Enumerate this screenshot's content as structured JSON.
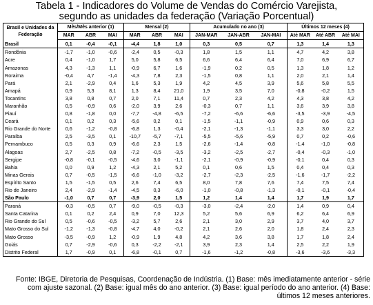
{
  "header": {
    "title_line1": "Tabela 1 - Indicadores do Volume de Vendas do Comércio Varejista,",
    "title_line2": "segundo as unidades da federação (Variação Porcentual)"
  },
  "table": {
    "row_header": "Brasil e Unidades da Federação",
    "groups": [
      "Mês/Mês anterior (1)",
      "Mensal (2)",
      "Acumulado no ano (3)",
      "Últimos 12 meses (4)"
    ],
    "subheaders": [
      [
        "MAR",
        "ABR",
        "MAI"
      ],
      [
        "MAR",
        "ABR",
        "MAI"
      ],
      [
        "JAN-MAR",
        "JAN-ABR",
        "JAN-MAI"
      ],
      [
        "Até MAR",
        "Até ABR",
        "Até MAI"
      ]
    ],
    "rows": [
      {
        "name": "Brasil",
        "bold": true,
        "values": [
          "0,1",
          "-0,4",
          "-0,1",
          "-4,4",
          "1,8",
          "1,0",
          "0,3",
          "0,5",
          "0,7",
          "1,3",
          "1,4",
          "1,3"
        ]
      },
      {
        "name": "Rondônia",
        "values": [
          "-1,7",
          "-1,0",
          "-0,6",
          "-2,4",
          "0,5",
          "-0,3",
          "1,8",
          "1,5",
          "1,1",
          "4,7",
          "4,2",
          "3,8"
        ]
      },
      {
        "name": "Acre",
        "values": [
          "0,4",
          "-1,0",
          "1,7",
          "5,0",
          "5,8",
          "6,5",
          "6,6",
          "6,4",
          "6,4",
          "7,0",
          "6,9",
          "6,7"
        ]
      },
      {
        "name": "Amazonas",
        "values": [
          "4,3",
          "-1,3",
          "1,1",
          "-0,9",
          "6,7",
          "1,6",
          "-1,9",
          "0,2",
          "0,5",
          "1,3",
          "1,8",
          "1,2"
        ]
      },
      {
        "name": "Roraima",
        "values": [
          "-0,4",
          "4,7",
          "-1,4",
          "-4,3",
          "7,8",
          "2,3",
          "-1,5",
          "0,8",
          "1,1",
          "2,0",
          "2,1",
          "1,4"
        ]
      },
      {
        "name": "Pará",
        "values": [
          "2,1",
          "-2,9",
          "0,4",
          "1,6",
          "5,3",
          "1,9",
          "4,2",
          "4,5",
          "3,9",
          "5,6",
          "5,8",
          "5,5"
        ]
      },
      {
        "name": "Amapá",
        "values": [
          "0,9",
          "5,3",
          "8,1",
          "1,3",
          "8,4",
          "21,0",
          "1,9",
          "3,5",
          "7,0",
          "-0,8",
          "-0,2",
          "1,5"
        ]
      },
      {
        "name": "Tocantins",
        "values": [
          "3,8",
          "0,8",
          "0,7",
          "2,0",
          "7,1",
          "11,4",
          "0,7",
          "2,3",
          "4,2",
          "4,3",
          "3,8",
          "4,2"
        ]
      },
      {
        "name": "Maranhão",
        "values": [
          "0,5",
          "-0,9",
          "0,6",
          "-2,0",
          "3,9",
          "2,6",
          "-0,3",
          "0,7",
          "1,1",
          "3,6",
          "3,9",
          "3,8"
        ]
      },
      {
        "name": "Piauí",
        "values": [
          "0,8",
          "-1,8",
          "0,0",
          "-7,7",
          "-4,8",
          "-6,5",
          "-7,2",
          "-6,6",
          "-6,6",
          "-3,5",
          "-3,9",
          "-4,5"
        ]
      },
      {
        "name": "Ceará",
        "values": [
          "0,1",
          "0,2",
          "0,3",
          "-5,6",
          "0,2",
          "0,1",
          "-1,5",
          "-1,1",
          "-0,9",
          "0,9",
          "0,6",
          "0,3"
        ]
      },
      {
        "name": "Rio Grande do Norte",
        "values": [
          "0,6",
          "-1,2",
          "-0,8",
          "-6,8",
          "1,3",
          "-0,4",
          "-2,1",
          "-1,3",
          "-1,1",
          "3,3",
          "3,0",
          "2,2"
        ]
      },
      {
        "name": "Paraíba",
        "values": [
          "2,5",
          "-3,5",
          "0,1",
          "-10,7",
          "-5,7",
          "-7,1",
          "-5,5",
          "-5,6",
          "-5,9",
          "0,7",
          "0,2",
          "-0,6"
        ]
      },
      {
        "name": "Pernambuco",
        "values": [
          "0,5",
          "0,3",
          "0,9",
          "-6,6",
          "2,3",
          "1,5",
          "-2,6",
          "-1,4",
          "-0,8",
          "-1,4",
          "-1,0",
          "-0,8"
        ]
      },
      {
        "name": "Alagoas",
        "values": [
          "2,7",
          "-2,5",
          "0,8",
          "-7,2",
          "-0,5",
          "-3,5",
          "-3,2",
          "-2,5",
          "-2,7",
          "-0,4",
          "-0,3",
          "-1,0"
        ]
      },
      {
        "name": "Sergipe",
        "values": [
          "-0,8",
          "-0,1",
          "-0,5",
          "-4,6",
          "3,0",
          "-1,1",
          "-2,1",
          "-0,9",
          "-0,9",
          "-0,1",
          "0,4",
          "0,3"
        ]
      },
      {
        "name": "Bahia",
        "values": [
          "0,0",
          "0,9",
          "1,2",
          "-4,3",
          "2,1",
          "5,2",
          "0,1",
          "0,6",
          "1,5",
          "0,4",
          "0,4",
          "0,3"
        ]
      },
      {
        "name": "Minas Gerais",
        "values": [
          "0,7",
          "-0,5",
          "-1,5",
          "-6,6",
          "-1,0",
          "-3,2",
          "-2,7",
          "-2,3",
          "-2,5",
          "-1,6",
          "-1,7",
          "-2,2"
        ]
      },
      {
        "name": "Espírito Santo",
        "values": [
          "1,5",
          "-1,5",
          "0,5",
          "2,6",
          "7,4",
          "6,5",
          "8,0",
          "7,8",
          "7,6",
          "7,4",
          "7,5",
          "7,4"
        ]
      },
      {
        "name": "Rio de Janeiro",
        "values": [
          "2,4",
          "-2,9",
          "-1,4",
          "-4,5",
          "0,3",
          "-6,0",
          "-1,0",
          "-0,8",
          "-1,3",
          "-0,1",
          "-0,1",
          "-0,4"
        ]
      },
      {
        "name": "São Paulo",
        "bold": true,
        "values": [
          "-1,0",
          "0,7",
          "0,7",
          "-3,9",
          "2,0",
          "1,5",
          "1,2",
          "1,4",
          "1,4",
          "1,7",
          "1,9",
          "1,7"
        ]
      },
      {
        "name": "Paraná",
        "values": [
          "-0,3",
          "-0,5",
          "0,7",
          "-9,0",
          "-0,5",
          "-0,3",
          "-3,0",
          "-2,4",
          "-2,0",
          "1,4",
          "0,9",
          "0,4"
        ]
      },
      {
        "name": "Santa Catarina",
        "values": [
          "0,1",
          "0,2",
          "2,4",
          "0,9",
          "7,0",
          "12,3",
          "5,2",
          "5,6",
          "6,9",
          "6,2",
          "6,4",
          "6,9"
        ]
      },
      {
        "name": "Rio Grande do Sul",
        "values": [
          "0,5",
          "-0,6",
          "-0,5",
          "-3,2",
          "5,7",
          "2,6",
          "2,1",
          "3,0",
          "2,9",
          "3,7",
          "4,0",
          "3,7"
        ]
      },
      {
        "name": "Mato Grosso do Sul",
        "values": [
          "-1,2",
          "-1,3",
          "-0,8",
          "-4,7",
          "4,0",
          "-0,2",
          "2,1",
          "2,6",
          "2,0",
          "1,8",
          "2,4",
          "2,3"
        ]
      },
      {
        "name": "Mato Grosso",
        "values": [
          "-3,5",
          "-0,9",
          "1,2",
          "-0,9",
          "1,9",
          "4,8",
          "4,2",
          "3,6",
          "3,8",
          "1,7",
          "1,8",
          "2,4"
        ]
      },
      {
        "name": "Goiás",
        "values": [
          "0,7",
          "-2,9",
          "-0,6",
          "0,3",
          "-2,2",
          "-2,1",
          "3,9",
          "2,3",
          "1,4",
          "2,5",
          "2,2",
          "1,9"
        ]
      },
      {
        "name": "Distrito Federal",
        "values": [
          "1,7",
          "-0,9",
          "0,1",
          "-6,8",
          "-0,1",
          "0,7",
          "-1,6",
          "-1,2",
          "-0,8",
          "-3,6",
          "-3,6",
          "-3,3"
        ]
      }
    ]
  },
  "footer": {
    "note": "Fonte: IBGE, Diretoria de Pesquisas, Coordenação de Indústria. (1) Base: mês imediatamente anterior - série com ajuste sazonal. (2) Base: igual mês do ano anterior. (3) Base: igual período do ano anterior. (4) Base: últimos 12 meses anteriores."
  }
}
